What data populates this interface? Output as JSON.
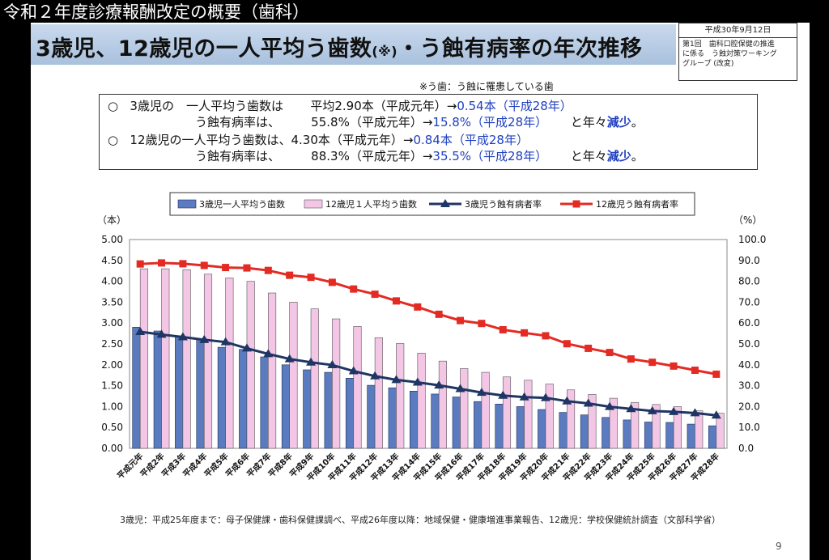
{
  "video_title": "令和２年度診療報酬改定の概要（歯科）",
  "slide": {
    "title_main": "3歳児、12歳児の一人平均う歯数",
    "title_note": "(※)",
    "title_tail": "・う蝕有病率の年次推移",
    "doc_box": {
      "date": "平成30年9月12日",
      "line1": "第1回　歯科口腔保健の推進",
      "line2": "に係る　う蝕対策ワーキング",
      "line3": "グループ (改変)"
    },
    "footnote_top": "※う歯：う蝕に罹患している歯",
    "summary": {
      "r1_marker": "○",
      "r1_a": "3歳児の　一人平均う歯数は",
      "r1_b": "平均2.90本（平成元年）→",
      "r1_c": "0.54本（平成28年）",
      "r2_a": "う蝕有病率は、",
      "r2_b": "55.8%（平成元年）→",
      "r2_c": "15.8%（平成28年）",
      "r2_d": "と年々",
      "r2_e": "減少",
      "r2_f": "。",
      "r3_marker": "○",
      "r3_a": "12歳児の一人平均う歯数は、4.30本（平成元年）→",
      "r3_c": "0.84本（平成28年）",
      "r4_a": "う蝕有病率は、",
      "r4_b": "88.3%（平成元年）→",
      "r4_c": "35.5%（平成28年）",
      "r4_d": "と年々",
      "r4_e": "減少",
      "r4_f": "。"
    },
    "source_note": "3歳児：平成25年度まで：母子保健課・歯科保健課調べ、平成26年度以降：地域保健・健康増進事業報告、12歳児：学校保健統計調査（文部科学省）",
    "page_number": "9"
  },
  "chart_data": {
    "type": "bar",
    "left_unit": "（本）",
    "right_unit": "（%）",
    "ylim_left": [
      0,
      5
    ],
    "ylim_right": [
      0,
      100
    ],
    "left_ticks": [
      "5.00",
      "4.50",
      "4.00",
      "3.50",
      "3.00",
      "2.50",
      "2.00",
      "1.50",
      "1.00",
      "0.50",
      "0.00"
    ],
    "right_ticks": [
      "100.0",
      "90.0",
      "80.0",
      "70.0",
      "60.0",
      "50.0",
      "40.0",
      "30.0",
      "20.0",
      "10.0",
      "0.0"
    ],
    "categories": [
      "平成元年",
      "平成2年",
      "平成3年",
      "平成4年",
      "平成5年",
      "平成6年",
      "平成7年",
      "平成8年",
      "平成9年",
      "平成10年",
      "平成11年",
      "平成12年",
      "平成13年",
      "平成14年",
      "平成15年",
      "平成16年",
      "平成17年",
      "平成18年",
      "平成19年",
      "平成20年",
      "平成21年",
      "平成22年",
      "平成23年",
      "平成24年",
      "平成25年",
      "平成26年",
      "平成27年",
      "平成28年"
    ],
    "series": [
      {
        "name": "3歳児一人平均う歯数",
        "type": "bar",
        "axis": "left",
        "color": "#5b7bc0",
        "values": [
          2.9,
          2.81,
          2.69,
          2.6,
          2.42,
          2.37,
          2.19,
          2.0,
          1.88,
          1.82,
          1.68,
          1.51,
          1.45,
          1.37,
          1.3,
          1.23,
          1.12,
          1.06,
          1.0,
          0.93,
          0.86,
          0.8,
          0.74,
          0.68,
          0.63,
          0.62,
          0.58,
          0.54
        ]
      },
      {
        "name": "12歳児１人平均う歯数",
        "type": "bar",
        "axis": "left",
        "color": "#f4c6e6",
        "values": [
          4.3,
          4.3,
          4.28,
          4.17,
          4.08,
          4.0,
          3.72,
          3.5,
          3.34,
          3.1,
          2.92,
          2.65,
          2.51,
          2.28,
          2.09,
          1.91,
          1.82,
          1.71,
          1.63,
          1.54,
          1.4,
          1.29,
          1.2,
          1.1,
          1.05,
          1.0,
          0.9,
          0.84
        ]
      },
      {
        "name": "3歳児う蝕有病者率",
        "type": "line",
        "axis": "right",
        "color": "#1f3564",
        "values": [
          55.8,
          54.5,
          53.3,
          52.0,
          50.9,
          47.9,
          45.2,
          42.8,
          41.2,
          39.9,
          37.0,
          34.6,
          32.8,
          31.6,
          30.2,
          28.5,
          26.7,
          25.3,
          24.5,
          24.2,
          22.6,
          21.5,
          19.9,
          18.9,
          17.9,
          17.5,
          16.9,
          15.8
        ]
      },
      {
        "name": "12歳児う蝕有病者率",
        "type": "line",
        "axis": "right",
        "color": "#e32b23",
        "values": [
          88.3,
          88.8,
          88.4,
          87.6,
          86.6,
          86.4,
          85.2,
          82.9,
          81.9,
          79.5,
          76.3,
          73.8,
          70.6,
          67.7,
          64.2,
          61.2,
          59.8,
          56.8,
          55.3,
          53.9,
          50.1,
          47.9,
          45.9,
          42.8,
          41.2,
          39.4,
          37.4,
          35.5
        ]
      }
    ]
  }
}
